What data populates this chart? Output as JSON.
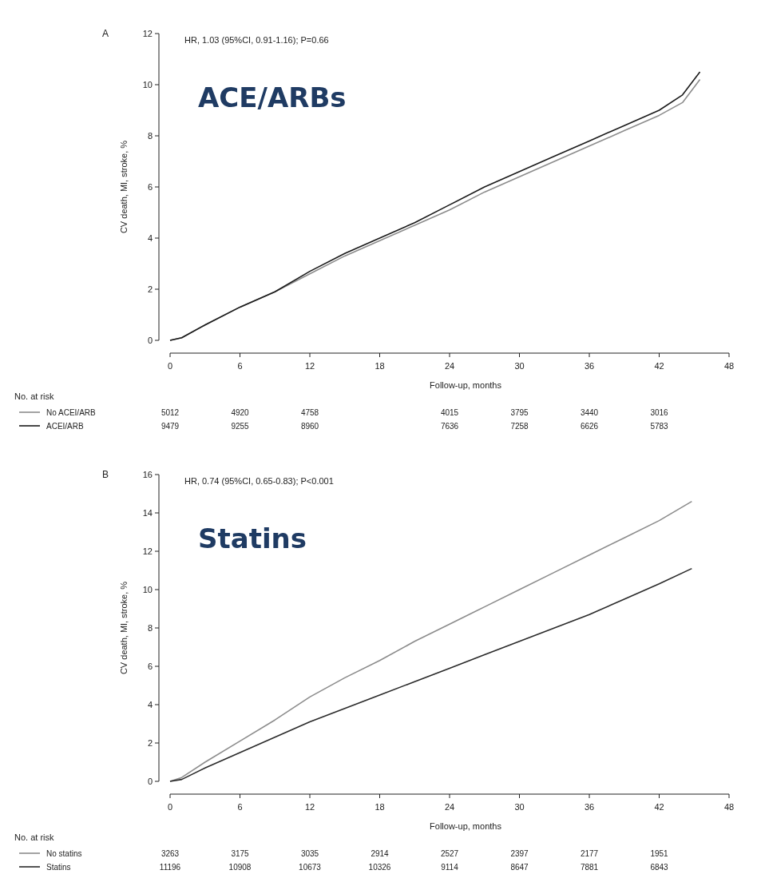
{
  "chart_data": [
    {
      "type": "line",
      "title": "A",
      "subtitle": "ACE/ARBs",
      "xlabel": "Follow-up, months",
      "ylabel": "CV death, MI, stroke, %",
      "xlim": [
        0,
        48
      ],
      "xticks": [
        0,
        6,
        12,
        18,
        24,
        30,
        36,
        42,
        48
      ],
      "ylim": [
        0,
        12
      ],
      "yticks": [
        0,
        2,
        4,
        6,
        8,
        10,
        12
      ],
      "legend": "bottom",
      "grid": false,
      "marker": "none",
      "line_style": "solid",
      "annotations": [
        "HR, 1.03 (95%CI, 0.91-1.16); P=0.66",
        "No. at risk",
        "5012",
        "4920",
        "4758",
        null,
        "4015",
        "3795",
        "3440",
        "3016",
        "9479",
        "9255",
        "8960",
        null,
        "7636",
        "7258",
        "6626",
        "5783"
      ],
      "series": [
        {
          "name": "No ACEI/ARB",
          "color": "#8c8c8c",
          "x": [
            0,
            1,
            3,
            6,
            9,
            12,
            15,
            18,
            21,
            24,
            27,
            30,
            33,
            36,
            39,
            42,
            44,
            45.5
          ],
          "values": [
            0,
            0.1,
            0.6,
            1.3,
            1.9,
            2.6,
            3.3,
            3.9,
            4.5,
            5.1,
            5.8,
            6.4,
            7.0,
            7.6,
            8.2,
            8.8,
            9.3,
            10.2
          ]
        },
        {
          "name": "ACEI/ARB",
          "color": "#1a1a1a",
          "x": [
            0,
            1,
            3,
            6,
            9,
            12,
            15,
            18,
            21,
            24,
            27,
            30,
            33,
            36,
            39,
            42,
            44,
            45.5
          ],
          "values": [
            0,
            0.1,
            0.6,
            1.3,
            1.9,
            2.7,
            3.4,
            4.0,
            4.6,
            5.3,
            6.0,
            6.6,
            7.2,
            7.8,
            8.4,
            9.0,
            9.6,
            10.5
          ]
        }
      ]
    },
    {
      "type": "line",
      "title": "B",
      "subtitle": "Statins",
      "xlabel": "Follow-up, months",
      "ylabel": "CV death, MI, stroke, %",
      "xlim": [
        0,
        48
      ],
      "xticks": [
        0,
        6,
        12,
        18,
        24,
        30,
        36,
        42,
        48
      ],
      "ylim": [
        0,
        16
      ],
      "yticks": [
        0,
        2,
        4,
        6,
        8,
        10,
        12,
        14,
        16
      ],
      "legend": "bottom",
      "grid": false,
      "marker": "none",
      "line_style": "solid",
      "annotations": [
        "HR, 0.74 (95%CI, 0.65-0.83); P<0.001",
        "No. at risk",
        "3263",
        "3175",
        "3035",
        "2914",
        "2527",
        "2397",
        "2177",
        "1951",
        "11196",
        "10908",
        "10673",
        "10326",
        "9114",
        "8647",
        "7881",
        "6843"
      ],
      "series": [
        {
          "name": "No statins",
          "color": "#8c8c8c",
          "x": [
            0,
            1,
            3,
            6,
            9,
            12,
            15,
            18,
            21,
            24,
            27,
            30,
            33,
            36,
            39,
            42,
            44.8
          ],
          "values": [
            0,
            0.2,
            1.0,
            2.1,
            3.2,
            4.4,
            5.4,
            6.3,
            7.3,
            8.2,
            9.1,
            10.0,
            10.9,
            11.8,
            12.7,
            13.6,
            14.6
          ]
        },
        {
          "name": "Statins",
          "color": "#2a2a2a",
          "x": [
            0,
            1,
            3,
            6,
            9,
            12,
            15,
            18,
            21,
            24,
            27,
            30,
            33,
            36,
            39,
            42,
            44.8
          ],
          "values": [
            0,
            0.1,
            0.7,
            1.5,
            2.3,
            3.1,
            3.8,
            4.5,
            5.2,
            5.9,
            6.6,
            7.3,
            8.0,
            8.7,
            9.5,
            10.3,
            11.1
          ]
        }
      ]
    }
  ]
}
